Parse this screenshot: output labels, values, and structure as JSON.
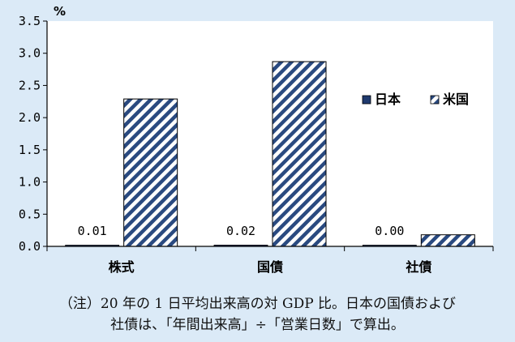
{
  "chart_data": {
    "type": "bar",
    "unit": "%",
    "categories": [
      "株式",
      "国債",
      "社債"
    ],
    "series": [
      {
        "name": "日本",
        "values": [
          0.01,
          0.02,
          0.0
        ],
        "color": "#1f3a6e",
        "data_labels": [
          "0.01",
          "0.02",
          "0.00"
        ]
      },
      {
        "name": "米国",
        "values": [
          2.29,
          2.87,
          0.18
        ],
        "color": "#2a4a80",
        "pattern": "diagonal-stripes"
      }
    ],
    "ylim": [
      0,
      3.5
    ],
    "yticks": [
      "0.0",
      "0.5",
      "1.0",
      "1.5",
      "2.0",
      "2.5",
      "3.0",
      "3.5"
    ],
    "grid": false,
    "legend_position": "right"
  },
  "note": {
    "line1": "（注）20 年の 1 日平均出来高の対 GDP 比。日本の国債および",
    "line2": "社債は、「年間出来高」÷「営業日数」で算出。"
  }
}
